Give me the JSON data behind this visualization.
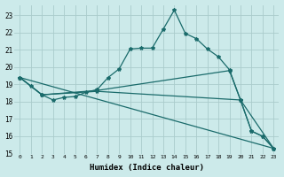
{
  "xlabel": "Humidex (Indice chaleur)",
  "bg_color": "#cceaea",
  "grid_color": "#aacccc",
  "line_color": "#1a6b6b",
  "xlim": [
    -0.5,
    23.5
  ],
  "ylim": [
    15,
    23.6
  ],
  "yticks": [
    15,
    16,
    17,
    18,
    19,
    20,
    21,
    22,
    23
  ],
  "xticks": [
    0,
    1,
    2,
    3,
    4,
    5,
    6,
    7,
    8,
    9,
    10,
    11,
    12,
    13,
    14,
    15,
    16,
    17,
    18,
    19,
    20,
    21,
    22,
    23
  ],
  "line1_x": [
    0,
    1,
    2,
    3,
    4,
    5,
    6,
    7,
    8,
    9,
    10,
    11,
    12,
    13,
    14,
    15,
    16,
    17,
    18,
    19,
    20,
    21,
    22,
    23
  ],
  "line1_y": [
    19.4,
    18.9,
    18.4,
    18.1,
    18.25,
    18.3,
    18.55,
    18.7,
    19.4,
    19.9,
    21.05,
    21.1,
    21.1,
    22.2,
    23.3,
    21.95,
    21.65,
    21.05,
    20.6,
    19.85,
    18.1,
    16.3,
    16.0,
    15.3
  ],
  "line2_x": [
    0,
    2,
    7,
    19,
    20,
    21,
    22,
    23
  ],
  "line2_y": [
    19.4,
    18.4,
    18.65,
    19.8,
    18.1,
    16.3,
    16.0,
    15.3
  ],
  "line3_x": [
    0,
    2,
    7,
    20,
    23
  ],
  "line3_y": [
    19.4,
    18.4,
    18.6,
    18.1,
    15.3
  ],
  "line4_x": [
    0,
    23
  ],
  "line4_y": [
    19.4,
    15.3
  ]
}
